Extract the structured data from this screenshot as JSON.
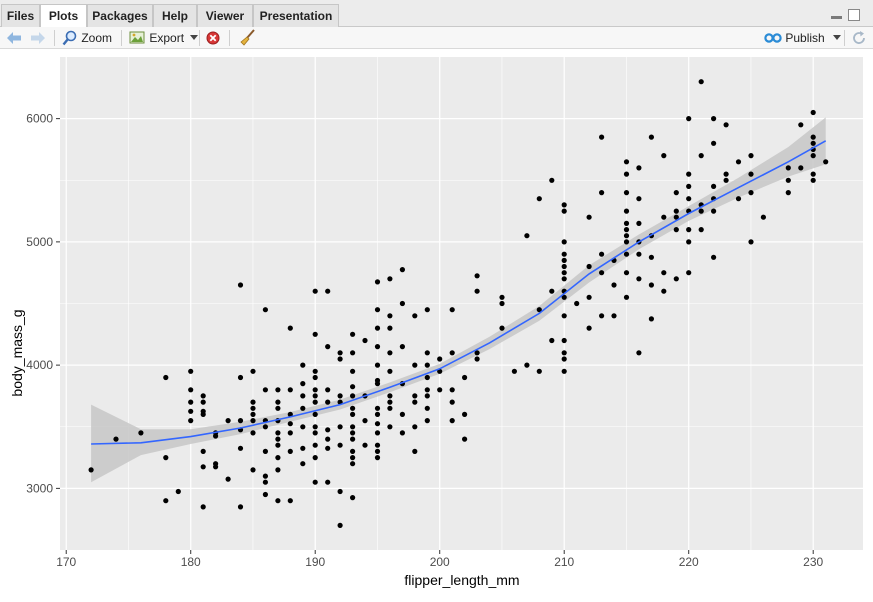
{
  "tabs": [
    {
      "label": "Files",
      "active": false
    },
    {
      "label": "Plots",
      "active": true
    },
    {
      "label": "Packages",
      "active": false
    },
    {
      "label": "Help",
      "active": false
    },
    {
      "label": "Viewer",
      "active": false
    },
    {
      "label": "Presentation",
      "active": false
    }
  ],
  "toolbar": {
    "zoom_label": "Zoom",
    "export_label": "Export",
    "publish_label": "Publish"
  },
  "icons": {
    "back": "arrow-left-icon",
    "forward": "arrow-right-icon",
    "zoom": "magnifier-icon",
    "export": "export-image-icon",
    "remove": "remove-plot-icon",
    "clear": "broom-icon",
    "publish": "publish-icon",
    "refresh": "refresh-icon"
  },
  "colors": {
    "panel": "#ebebeb",
    "grid": "#ffffff",
    "point": "#000000",
    "smooth": "#3366ff",
    "ribbon": "#c7c7c7"
  },
  "chart_data": {
    "type": "scatter",
    "xlabel": "flipper_length_mm",
    "ylabel": "body_mass_g",
    "xlim": [
      169.5,
      234
    ],
    "ylim": [
      2500,
      6500
    ],
    "x_ticks": [
      170,
      180,
      190,
      200,
      210,
      220,
      230
    ],
    "y_ticks": [
      3000,
      4000,
      5000,
      6000
    ],
    "grid": true,
    "points": [
      [
        172,
        3150
      ],
      [
        174,
        3400
      ],
      [
        176,
        3450
      ],
      [
        178,
        2900
      ],
      [
        178,
        3250
      ],
      [
        178,
        3900
      ],
      [
        179,
        2975
      ],
      [
        180,
        3550
      ],
      [
        180,
        3625
      ],
      [
        180,
        3700
      ],
      [
        180,
        3800
      ],
      [
        180,
        3950
      ],
      [
        181,
        2850
      ],
      [
        181,
        3175
      ],
      [
        181,
        3300
      ],
      [
        181,
        3600
      ],
      [
        181,
        3625
      ],
      [
        181,
        3700
      ],
      [
        181,
        3750
      ],
      [
        182,
        3175
      ],
      [
        182,
        3200
      ],
      [
        182,
        3425
      ],
      [
        182,
        3450
      ],
      [
        183,
        3075
      ],
      [
        183,
        3550
      ],
      [
        184,
        2850
      ],
      [
        184,
        3325
      ],
      [
        184,
        3475
      ],
      [
        184,
        3550
      ],
      [
        184,
        3900
      ],
      [
        184,
        4650
      ],
      [
        185,
        3150
      ],
      [
        185,
        3450
      ],
      [
        185,
        3550
      ],
      [
        185,
        3600
      ],
      [
        185,
        3650
      ],
      [
        185,
        3700
      ],
      [
        185,
        3950
      ],
      [
        186,
        2950
      ],
      [
        186,
        3050
      ],
      [
        186,
        3100
      ],
      [
        186,
        3300
      ],
      [
        186,
        3500
      ],
      [
        186,
        3550
      ],
      [
        186,
        3800
      ],
      [
        186,
        4450
      ],
      [
        187,
        2900
      ],
      [
        187,
        3150
      ],
      [
        187,
        3250
      ],
      [
        187,
        3350
      ],
      [
        187,
        3400
      ],
      [
        187,
        3450
      ],
      [
        187,
        3550
      ],
      [
        187,
        3650
      ],
      [
        187,
        3700
      ],
      [
        187,
        3800
      ],
      [
        188,
        2900
      ],
      [
        188,
        3300
      ],
      [
        188,
        3450
      ],
      [
        188,
        3525
      ],
      [
        188,
        3600
      ],
      [
        188,
        3800
      ],
      [
        188,
        4300
      ],
      [
        189,
        3200
      ],
      [
        189,
        3325
      ],
      [
        189,
        3500
      ],
      [
        189,
        3650
      ],
      [
        189,
        3750
      ],
      [
        189,
        3850
      ],
      [
        189,
        4000
      ],
      [
        190,
        3050
      ],
      [
        190,
        3250
      ],
      [
        190,
        3350
      ],
      [
        190,
        3450
      ],
      [
        190,
        3500
      ],
      [
        190,
        3600
      ],
      [
        190,
        3700
      ],
      [
        190,
        3750
      ],
      [
        190,
        3800
      ],
      [
        190,
        3900
      ],
      [
        190,
        3950
      ],
      [
        190,
        4250
      ],
      [
        190,
        4600
      ],
      [
        191,
        3050
      ],
      [
        191,
        3325
      ],
      [
        191,
        3400
      ],
      [
        191,
        3475
      ],
      [
        191,
        3700
      ],
      [
        191,
        3800
      ],
      [
        191,
        4150
      ],
      [
        191,
        4600
      ],
      [
        192,
        2700
      ],
      [
        192,
        2975
      ],
      [
        192,
        3350
      ],
      [
        192,
        3500
      ],
      [
        192,
        3700
      ],
      [
        192,
        3750
      ],
      [
        192,
        4050
      ],
      [
        192,
        4100
      ],
      [
        193,
        2925
      ],
      [
        193,
        3200
      ],
      [
        193,
        3250
      ],
      [
        193,
        3300
      ],
      [
        193,
        3400
      ],
      [
        193,
        3450
      ],
      [
        193,
        3500
      ],
      [
        193,
        3600
      ],
      [
        193,
        3650
      ],
      [
        193,
        3750
      ],
      [
        193,
        3825
      ],
      [
        193,
        3950
      ],
      [
        193,
        4100
      ],
      [
        193,
        4250
      ],
      [
        194,
        3350
      ],
      [
        194,
        3550
      ],
      [
        194,
        3750
      ],
      [
        194,
        4200
      ],
      [
        195,
        3250
      ],
      [
        195,
        3300
      ],
      [
        195,
        3350
      ],
      [
        195,
        3450
      ],
      [
        195,
        3525
      ],
      [
        195,
        3600
      ],
      [
        195,
        3650
      ],
      [
        195,
        3850
      ],
      [
        195,
        3875
      ],
      [
        195,
        4000
      ],
      [
        195,
        4150
      ],
      [
        195,
        4300
      ],
      [
        195,
        4450
      ],
      [
        195,
        4675
      ],
      [
        196,
        3500
      ],
      [
        196,
        3650
      ],
      [
        196,
        3700
      ],
      [
        196,
        3750
      ],
      [
        196,
        3950
      ],
      [
        196,
        4100
      ],
      [
        196,
        4300
      ],
      [
        196,
        4400
      ],
      [
        196,
        4700
      ],
      [
        197,
        3450
      ],
      [
        197,
        3600
      ],
      [
        197,
        3850
      ],
      [
        197,
        4150
      ],
      [
        197,
        4500
      ],
      [
        197,
        4775
      ],
      [
        198,
        3300
      ],
      [
        198,
        3500
      ],
      [
        198,
        3700
      ],
      [
        198,
        3750
      ],
      [
        198,
        4000
      ],
      [
        198,
        4400
      ],
      [
        199,
        3550
      ],
      [
        199,
        3650
      ],
      [
        199,
        3750
      ],
      [
        199,
        3800
      ],
      [
        199,
        3900
      ],
      [
        199,
        4000
      ],
      [
        199,
        4100
      ],
      [
        199,
        4450
      ],
      [
        200,
        3800
      ],
      [
        200,
        3950
      ],
      [
        200,
        4050
      ],
      [
        201,
        3550
      ],
      [
        201,
        3700
      ],
      [
        201,
        3800
      ],
      [
        201,
        4100
      ],
      [
        201,
        4450
      ],
      [
        202,
        3400
      ],
      [
        202,
        3600
      ],
      [
        202,
        3900
      ],
      [
        203,
        4050
      ],
      [
        203,
        4100
      ],
      [
        203,
        4600
      ],
      [
        203,
        4725
      ],
      [
        205,
        4300
      ],
      [
        205,
        4500
      ],
      [
        205,
        4550
      ],
      [
        206,
        3950
      ],
      [
        207,
        4000
      ],
      [
        207,
        5050
      ],
      [
        208,
        3950
      ],
      [
        208,
        4450
      ],
      [
        208,
        5350
      ],
      [
        209,
        4200
      ],
      [
        209,
        4600
      ],
      [
        209,
        5500
      ],
      [
        210,
        3950
      ],
      [
        210,
        4050
      ],
      [
        210,
        4100
      ],
      [
        210,
        4200
      ],
      [
        210,
        4400
      ],
      [
        210,
        4550
      ],
      [
        210,
        4600
      ],
      [
        210,
        4700
      ],
      [
        210,
        4750
      ],
      [
        210,
        4800
      ],
      [
        210,
        4850
      ],
      [
        210,
        4900
      ],
      [
        210,
        5000
      ],
      [
        210,
        5250
      ],
      [
        210,
        5300
      ],
      [
        211,
        4500
      ],
      [
        212,
        4300
      ],
      [
        212,
        4550
      ],
      [
        212,
        4800
      ],
      [
        212,
        5200
      ],
      [
        213,
        4400
      ],
      [
        213,
        4750
      ],
      [
        213,
        4900
      ],
      [
        213,
        5400
      ],
      [
        213,
        5850
      ],
      [
        214,
        4400
      ],
      [
        214,
        4650
      ],
      [
        214,
        4850
      ],
      [
        215,
        4550
      ],
      [
        215,
        4750
      ],
      [
        215,
        4900
      ],
      [
        215,
        5000
      ],
      [
        215,
        5050
      ],
      [
        215,
        5100
      ],
      [
        215,
        5150
      ],
      [
        215,
        5250
      ],
      [
        215,
        5400
      ],
      [
        215,
        5550
      ],
      [
        215,
        5650
      ],
      [
        216,
        4100
      ],
      [
        216,
        4700
      ],
      [
        216,
        4900
      ],
      [
        216,
        5000
      ],
      [
        216,
        5150
      ],
      [
        216,
        5350
      ],
      [
        216,
        5600
      ],
      [
        217,
        4375
      ],
      [
        217,
        4650
      ],
      [
        217,
        4875
      ],
      [
        217,
        5050
      ],
      [
        217,
        5850
      ],
      [
        218,
        4600
      ],
      [
        218,
        4750
      ],
      [
        218,
        5200
      ],
      [
        218,
        5700
      ],
      [
        219,
        4700
      ],
      [
        219,
        5100
      ],
      [
        219,
        5200
      ],
      [
        219,
        5250
      ],
      [
        219,
        5400
      ],
      [
        220,
        4750
      ],
      [
        220,
        5000
      ],
      [
        220,
        5100
      ],
      [
        220,
        5250
      ],
      [
        220,
        5350
      ],
      [
        220,
        5450
      ],
      [
        220,
        5550
      ],
      [
        220,
        6000
      ],
      [
        221,
        5100
      ],
      [
        221,
        5250
      ],
      [
        221,
        5300
      ],
      [
        221,
        5700
      ],
      [
        221,
        6300
      ],
      [
        222,
        4875
      ],
      [
        222,
        5250
      ],
      [
        222,
        5350
      ],
      [
        222,
        5450
      ],
      [
        222,
        5800
      ],
      [
        222,
        6000
      ],
      [
        223,
        5500
      ],
      [
        223,
        5550
      ],
      [
        223,
        5950
      ],
      [
        224,
        5350
      ],
      [
        224,
        5650
      ],
      [
        225,
        5000
      ],
      [
        225,
        5400
      ],
      [
        225,
        5550
      ],
      [
        225,
        5700
      ],
      [
        226,
        5200
      ],
      [
        228,
        5400
      ],
      [
        228,
        5500
      ],
      [
        228,
        5600
      ],
      [
        229,
        5600
      ],
      [
        229,
        5950
      ],
      [
        230,
        5500
      ],
      [
        230,
        5550
      ],
      [
        230,
        5700
      ],
      [
        230,
        5750
      ],
      [
        230,
        5800
      ],
      [
        230,
        5850
      ],
      [
        230,
        6050
      ],
      [
        231,
        5650
      ]
    ],
    "smooth": {
      "x": [
        172,
        176,
        180,
        184,
        188,
        192,
        196,
        200,
        204,
        208,
        212,
        216,
        220,
        224,
        228,
        231
      ],
      "y": [
        3360,
        3370,
        3420,
        3490,
        3580,
        3680,
        3820,
        3970,
        4180,
        4420,
        4740,
        5000,
        5230,
        5440,
        5650,
        5820
      ],
      "lower": [
        3050,
        3270,
        3360,
        3440,
        3540,
        3640,
        3780,
        3930,
        4130,
        4360,
        4670,
        4940,
        5170,
        5360,
        5530,
        5630
      ],
      "upper": [
        3680,
        3480,
        3480,
        3540,
        3620,
        3720,
        3860,
        4010,
        4230,
        4480,
        4810,
        5060,
        5290,
        5520,
        5770,
        6010
      ]
    }
  }
}
